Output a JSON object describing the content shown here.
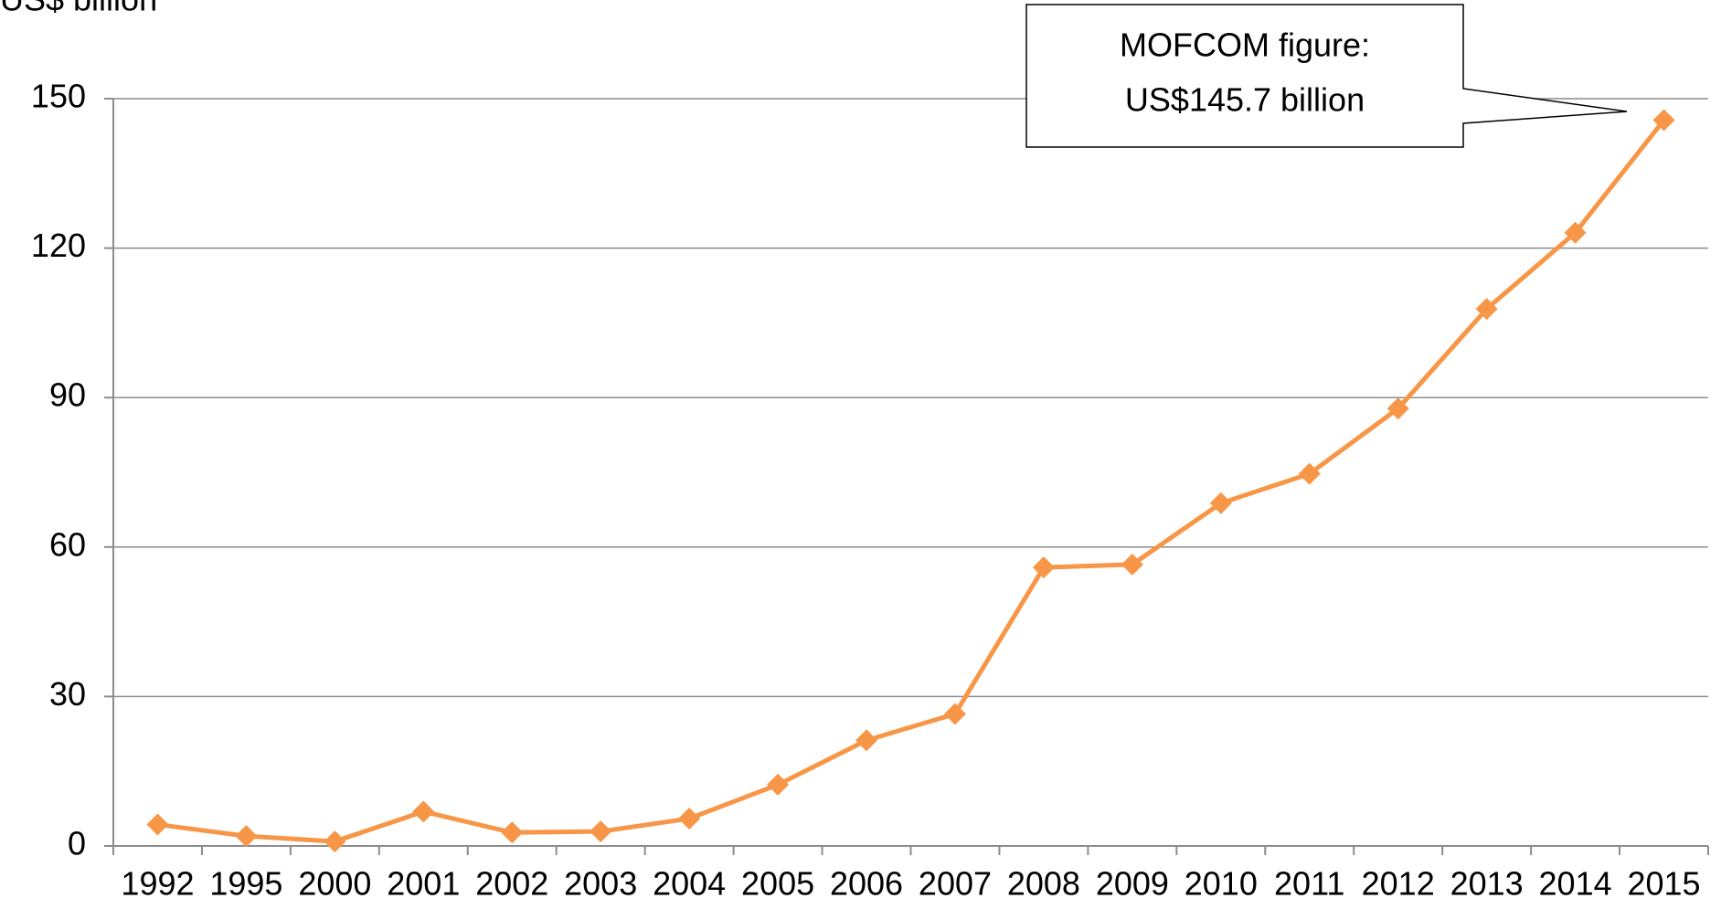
{
  "chart_data": {
    "type": "line",
    "y_label": "US$ billion",
    "annotation": [
      "MOFCOM figure:",
      "US$145.7 billion"
    ],
    "categories": [
      "1992",
      "1995",
      "2000",
      "2001",
      "2002",
      "2003",
      "2004",
      "2005",
      "2006",
      "2007",
      "2008",
      "2009",
      "2010",
      "2011",
      "2012",
      "2013",
      "2014",
      "2015"
    ],
    "values": [
      4.3,
      2.0,
      0.9,
      6.9,
      2.7,
      2.9,
      5.5,
      12.3,
      21.2,
      26.5,
      55.9,
      56.5,
      68.8,
      74.7,
      87.8,
      107.8,
      123.1,
      145.7
    ],
    "color": "#f79646",
    "ylim": [
      0,
      150
    ],
    "yticks": [
      0,
      30,
      60,
      90,
      120,
      150
    ],
    "grid": true
  }
}
